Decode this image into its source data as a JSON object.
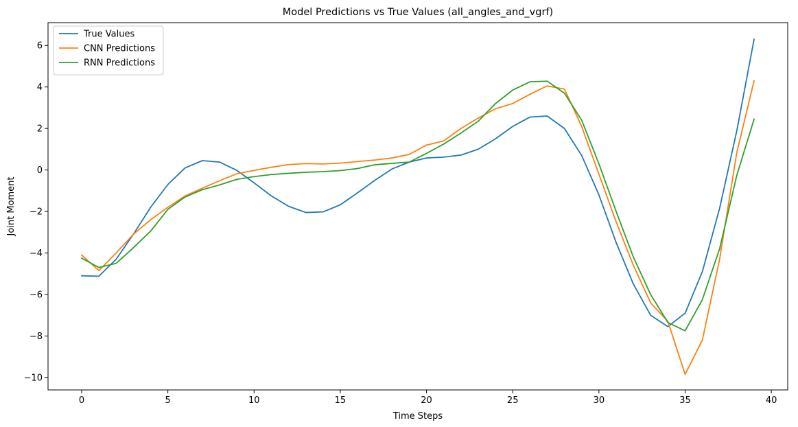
{
  "chart_data": {
    "type": "line",
    "title": "Model Predictions vs True Values (all_angles_and_vgrf)",
    "xlabel": "Time Steps",
    "ylabel": "Joint Moment",
    "xlim": [
      -1.95,
      40.95
    ],
    "ylim": [
      -10.6,
      7.1
    ],
    "xticks": [
      0,
      5,
      10,
      15,
      20,
      25,
      30,
      35,
      40
    ],
    "yticks": [
      -10,
      -8,
      -6,
      -4,
      -2,
      0,
      2,
      4,
      6
    ],
    "grid": false,
    "legend": "top-left",
    "x": [
      0,
      1,
      2,
      3,
      4,
      5,
      6,
      7,
      8,
      9,
      10,
      11,
      12,
      13,
      14,
      15,
      16,
      17,
      18,
      19,
      20,
      21,
      22,
      23,
      24,
      25,
      26,
      27,
      28,
      29,
      30,
      31,
      32,
      33,
      34,
      35,
      36,
      37,
      38,
      39
    ],
    "series": [
      {
        "name": "True Values",
        "color": "#1f77b4",
        "values": [
          -5.1,
          -5.12,
          -4.3,
          -3.1,
          -1.8,
          -0.7,
          0.1,
          0.45,
          0.38,
          -0.02,
          -0.62,
          -1.25,
          -1.75,
          -2.05,
          -2.02,
          -1.68,
          -1.1,
          -0.5,
          0.05,
          0.38,
          0.58,
          0.62,
          0.72,
          1.0,
          1.5,
          2.1,
          2.55,
          2.6,
          2.0,
          0.7,
          -1.2,
          -3.5,
          -5.5,
          -7.0,
          -7.55,
          -6.9,
          -4.9,
          -1.85,
          1.9,
          6.3
        ]
      },
      {
        "name": "CNN Predictions",
        "color": "#ff7f0e",
        "values": [
          -4.1,
          -4.85,
          -4.0,
          -3.1,
          -2.4,
          -1.8,
          -1.25,
          -0.88,
          -0.52,
          -0.18,
          -0.02,
          0.13,
          0.26,
          0.31,
          0.29,
          0.33,
          0.41,
          0.48,
          0.58,
          0.75,
          1.2,
          1.4,
          2.0,
          2.5,
          2.95,
          3.2,
          3.65,
          4.05,
          3.9,
          2.1,
          -0.2,
          -2.5,
          -4.6,
          -6.4,
          -7.3,
          -9.85,
          -8.2,
          -4.3,
          0.85,
          4.3
        ]
      },
      {
        "name": "RNN Predictions",
        "color": "#2ca02c",
        "values": [
          -4.25,
          -4.7,
          -4.5,
          -3.75,
          -2.95,
          -1.9,
          -1.3,
          -0.95,
          -0.72,
          -0.45,
          -0.32,
          -0.22,
          -0.16,
          -0.11,
          -0.08,
          -0.03,
          0.07,
          0.25,
          0.32,
          0.38,
          0.8,
          1.25,
          1.78,
          2.35,
          3.2,
          3.85,
          4.25,
          4.28,
          3.7,
          2.4,
          0.3,
          -2.0,
          -4.2,
          -6.0,
          -7.35,
          -7.75,
          -6.25,
          -3.8,
          -0.25,
          2.45
        ]
      }
    ]
  }
}
